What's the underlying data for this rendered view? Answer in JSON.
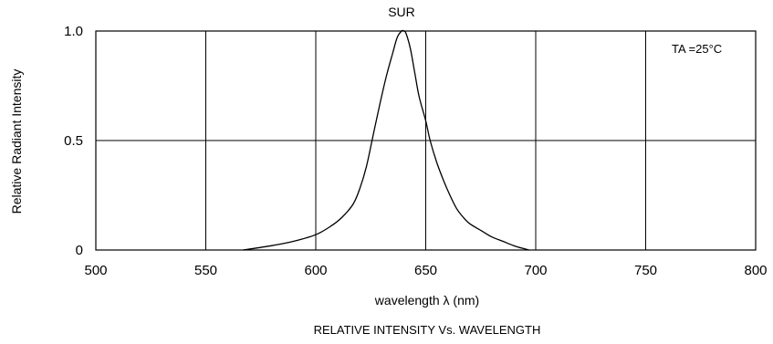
{
  "chart_data": {
    "type": "line",
    "title": "SUR",
    "xlabel": "wavelength λ (nm)",
    "ylabel": "Relative Radiant Intensity",
    "caption": "RELATIVE INTENSITY Vs. WAVELENGTH",
    "annotation": "TA =25°C",
    "xlim": [
      500,
      800
    ],
    "ylim": [
      0,
      1.0
    ],
    "x_ticks": [
      500,
      550,
      600,
      650,
      700,
      750,
      800
    ],
    "x_tick_labels": [
      "500",
      "550",
      "600",
      "650",
      "700",
      "750",
      "800"
    ],
    "y_ticks": [
      0,
      0.5,
      1.0
    ],
    "y_tick_labels": [
      "0",
      "0.5",
      "1.0"
    ],
    "grid": true,
    "series": [
      {
        "x": [
          567,
          580,
          590,
          600,
          607,
          612,
          617,
          620,
          623,
          626,
          629,
          632,
          635,
          637,
          639,
          640,
          641,
          643,
          645,
          647,
          650,
          652,
          655,
          658,
          661,
          664,
          667,
          670,
          675,
          680,
          685,
          690,
          695,
          697
        ],
        "y": [
          0.0,
          0.02,
          0.04,
          0.07,
          0.11,
          0.15,
          0.21,
          0.28,
          0.38,
          0.52,
          0.66,
          0.79,
          0.9,
          0.97,
          1.0,
          1.0,
          0.99,
          0.92,
          0.81,
          0.7,
          0.59,
          0.5,
          0.4,
          0.32,
          0.25,
          0.19,
          0.15,
          0.12,
          0.09,
          0.06,
          0.04,
          0.02,
          0.005,
          0.0
        ],
        "color": "#000000"
      }
    ]
  }
}
